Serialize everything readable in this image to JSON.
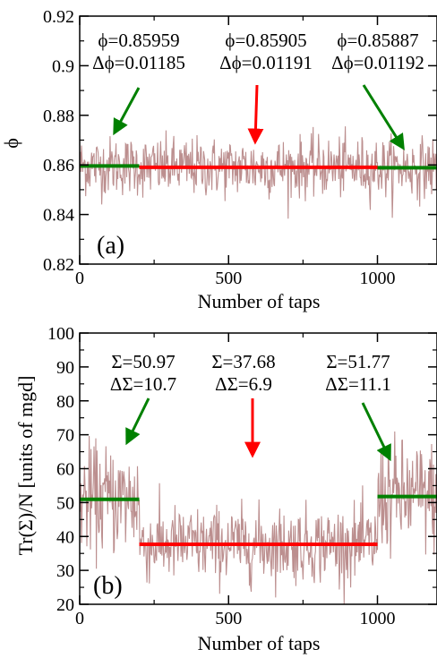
{
  "chart_data": [
    {
      "type": "line",
      "panel_label": "(a)",
      "xlabel": "Number of taps",
      "ylabel": "ϕ",
      "xlim": [
        0,
        1200
      ],
      "ylim": [
        0.82,
        0.92
      ],
      "x_ticks": [
        "0",
        "500",
        "1000"
      ],
      "x_tick_values": [
        0,
        500,
        1000
      ],
      "y_ticks": [
        "0.82",
        "0.84",
        "0.86",
        "0.88",
        "0.9",
        "0.92"
      ],
      "y_tick_values": [
        0.82,
        0.84,
        0.86,
        0.88,
        0.9,
        0.92
      ],
      "series_color": "#bc8f8f",
      "noise": {
        "x_start": 0,
        "x_end": 1200,
        "points": 600,
        "regions": [
          {
            "x0": 0,
            "x1": 200,
            "mean": 0.85959,
            "sd": 0.00592
          },
          {
            "x0": 200,
            "x1": 1000,
            "mean": 0.85905,
            "sd": 0.00595
          },
          {
            "x0": 1000,
            "x1": 1200,
            "mean": 0.85887,
            "sd": 0.00596
          }
        ]
      },
      "means": [
        {
          "x0": 0,
          "x1": 200,
          "y": 0.85959,
          "color": "#008000"
        },
        {
          "x0": 200,
          "x1": 1000,
          "y": 0.85905,
          "color": "#ff0000"
        },
        {
          "x0": 1000,
          "x1": 1200,
          "y": 0.85887,
          "color": "#008000"
        }
      ],
      "annotations": [
        {
          "line1": "ϕ=0.85959",
          "line2": "Δϕ=0.01185",
          "color": "#008000",
          "tx": 155,
          "ty": 52,
          "ax1": 155,
          "ay1": 98,
          "ax2": 128,
          "ay2": 148
        },
        {
          "line1": "ϕ=0.85905",
          "line2": "Δϕ=0.01191",
          "color": "#ff0000",
          "tx": 297,
          "ty": 52,
          "ax1": 287,
          "ay1": 95,
          "ax2": 285,
          "ay2": 158
        },
        {
          "line1": "ϕ=0.85887",
          "line2": "Δϕ=0.01192",
          "color": "#008000",
          "tx": 422,
          "ty": 52,
          "ax1": 406,
          "ay1": 95,
          "ax2": 450,
          "ay2": 165
        }
      ]
    },
    {
      "type": "line",
      "panel_label": "(b)",
      "xlabel": "Number of taps",
      "ylabel": "Tr(Σ)/N [units of mgd]",
      "xlim": [
        0,
        1200
      ],
      "ylim": [
        20,
        100
      ],
      "x_ticks": [
        "0",
        "500",
        "1000"
      ],
      "x_tick_values": [
        0,
        500,
        1000
      ],
      "y_ticks": [
        "20",
        "30",
        "40",
        "50",
        "60",
        "70",
        "80",
        "90",
        "100"
      ],
      "y_tick_values": [
        20,
        30,
        40,
        50,
        60,
        70,
        80,
        90,
        100
      ],
      "series_color": "#bc8f8f",
      "noise": {
        "x_start": 0,
        "x_end": 1200,
        "points": 600,
        "regions": [
          {
            "x0": 0,
            "x1": 200,
            "mean": 50.97,
            "sd": 8.0
          },
          {
            "x0": 200,
            "x1": 1000,
            "mean": 37.68,
            "sd": 5.5
          },
          {
            "x0": 1000,
            "x1": 1200,
            "mean": 51.77,
            "sd": 8.2
          }
        ]
      },
      "means": [
        {
          "x0": 0,
          "x1": 200,
          "y": 50.97,
          "color": "#008000"
        },
        {
          "x0": 200,
          "x1": 1000,
          "y": 37.68,
          "color": "#ff0000"
        },
        {
          "x0": 1000,
          "x1": 1200,
          "y": 51.77,
          "color": "#008000"
        }
      ],
      "annotations": [
        {
          "line1": "Σ=50.97",
          "line2": "ΔΣ=10.7",
          "color": "#008000",
          "tx": 160,
          "ty": 411,
          "ax1": 166,
          "ay1": 445,
          "ax2": 142,
          "ay2": 494
        },
        {
          "line1": "Σ=37.68",
          "line2": "ΔΣ=6.9",
          "color": "#ff0000",
          "tx": 272,
          "ty": 411,
          "ax1": 282,
          "ay1": 445,
          "ax2": 282,
          "ay2": 508
        },
        {
          "line1": "Σ=51.77",
          "line2": "ΔΣ=11.1",
          "color": "#008000",
          "tx": 400,
          "ty": 411,
          "ax1": 405,
          "ay1": 450,
          "ax2": 435,
          "ay2": 512
        }
      ]
    }
  ]
}
